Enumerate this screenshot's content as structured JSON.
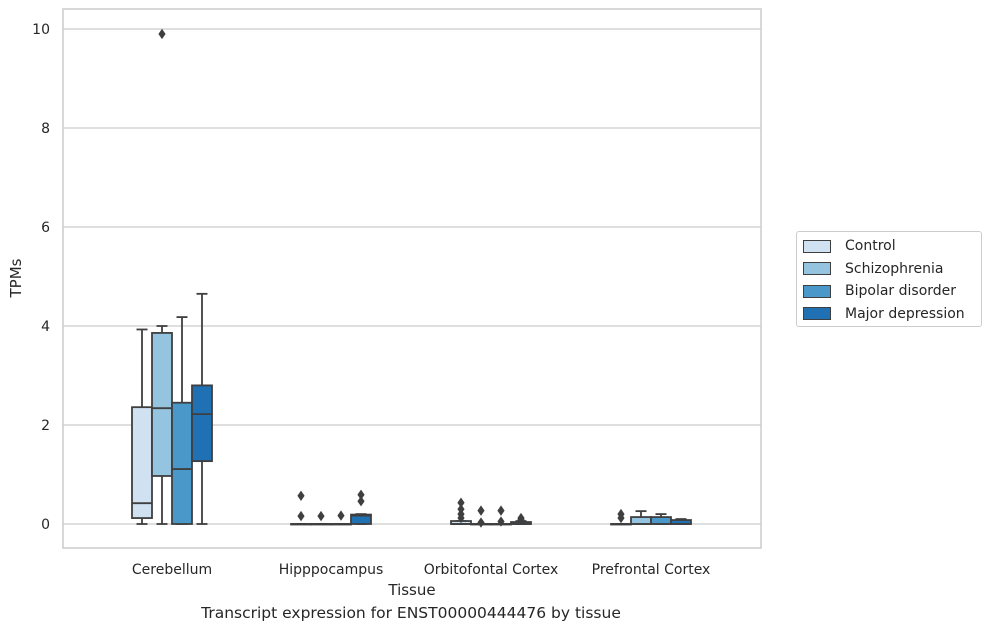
{
  "chart_data": {
    "type": "box",
    "title": "",
    "caption": "Transcript expression for ENST00000444476 by tissue",
    "xlabel": "Tissue",
    "ylabel": "TPMs",
    "ylim": [
      -0.45,
      10.4
    ],
    "yticks": [
      0,
      2,
      4,
      6,
      8,
      10
    ],
    "grid": true,
    "legend_position": "right",
    "categories": [
      "Cerebellum",
      "Hipppocampus",
      "Orbitofontal Cortex",
      "Prefrontal Cortex"
    ],
    "series": [
      {
        "name": "Control",
        "color": "#d0e1f2",
        "boxes": [
          {
            "whislo": 0.0,
            "q1": 0.12,
            "med": 0.42,
            "q3": 2.36,
            "whishi": 3.93,
            "fliers": []
          },
          {
            "whislo": 0.0,
            "q1": 0.0,
            "med": 0.0,
            "q3": 0.0,
            "whishi": 0.0,
            "fliers": [
              0.57,
              0.16
            ]
          },
          {
            "whislo": 0.0,
            "q1": 0.0,
            "med": 0.0,
            "q3": 0.06,
            "whishi": 0.06,
            "fliers": [
              0.43,
              0.3,
              0.2,
              0.12
            ]
          },
          {
            "whislo": 0.0,
            "q1": 0.0,
            "med": 0.0,
            "q3": 0.0,
            "whishi": 0.0,
            "fliers": [
              0.2,
              0.12
            ]
          }
        ]
      },
      {
        "name": "Schizophrenia",
        "color": "#94c4df",
        "boxes": [
          {
            "whislo": 0.0,
            "q1": 0.97,
            "med": 2.34,
            "q3": 3.86,
            "whishi": 4.0,
            "fliers": []
          },
          {
            "whislo": 0.0,
            "q1": 0.0,
            "med": 0.0,
            "q3": 0.0,
            "whishi": 0.0,
            "fliers": [
              0.16
            ]
          },
          {
            "whislo": 0.0,
            "q1": 0.0,
            "med": 0.0,
            "q3": 0.0,
            "whishi": 0.0,
            "fliers": [
              0.27,
              0.03
            ]
          },
          {
            "whislo": 0.0,
            "q1": 0.0,
            "med": 0.0,
            "q3": 0.14,
            "whishi": 0.26,
            "fliers": []
          }
        ]
      },
      {
        "name": "Bipolar disorder",
        "color": "#4a98c9",
        "boxes": [
          {
            "whislo": 0.0,
            "q1": 0.0,
            "med": 1.11,
            "q3": 2.45,
            "whishi": 4.18,
            "fliers": []
          },
          {
            "whislo": 0.0,
            "q1": 0.0,
            "med": 0.0,
            "q3": 0.0,
            "whishi": 0.0,
            "fliers": [
              0.17
            ]
          },
          {
            "whislo": 0.0,
            "q1": 0.0,
            "med": 0.0,
            "q3": 0.0,
            "whishi": 0.0,
            "fliers": [
              0.27,
              0.05
            ]
          },
          {
            "whislo": 0.0,
            "q1": 0.0,
            "med": 0.0,
            "q3": 0.14,
            "whishi": 0.2,
            "fliers": []
          }
        ]
      },
      {
        "name": "Major depression",
        "color": "#2070b4",
        "boxes": [
          {
            "whislo": 0.0,
            "q1": 1.27,
            "med": 2.22,
            "q3": 2.8,
            "whishi": 4.65,
            "fliers": []
          },
          {
            "whislo": 0.0,
            "q1": 0.0,
            "med": 0.17,
            "q3": 0.19,
            "whishi": 0.2,
            "fliers": [
              0.59,
              0.46
            ]
          },
          {
            "whislo": 0.0,
            "q1": 0.0,
            "med": 0.0,
            "q3": 0.04,
            "whishi": 0.06,
            "fliers": [
              0.12,
              0.09
            ]
          },
          {
            "whislo": 0.0,
            "q1": 0.0,
            "med": 0.0,
            "q3": 0.08,
            "whishi": 0.1,
            "fliers": []
          }
        ]
      }
    ],
    "outliers_extra": [
      {
        "category": 0,
        "series": 0,
        "value": 9.9
      }
    ]
  }
}
